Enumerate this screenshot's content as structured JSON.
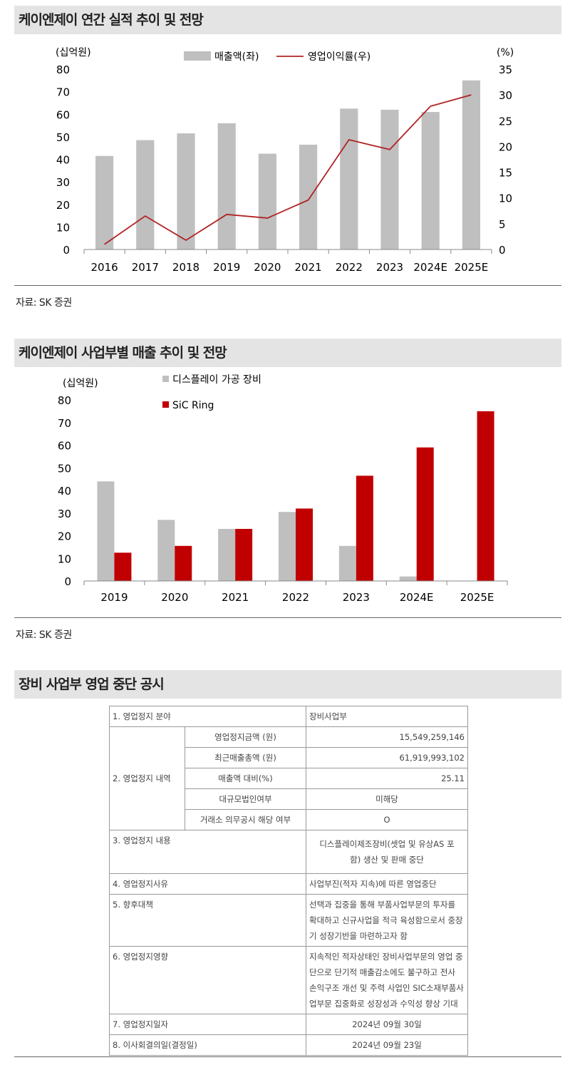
{
  "sections": {
    "s1": "케이엔제이 연간 실적 추이 및 전망",
    "s2": "케이엔제이 사업부별 매출 추이 및 전망",
    "s3": "장비 사업부 영업 중단 공시"
  },
  "source": "자료: SK 증권",
  "chart_data": [
    {
      "type": "bar+line",
      "title": "케이엔제이 연간 실적 추이 및 전망",
      "categories": [
        "2016",
        "2017",
        "2018",
        "2019",
        "2020",
        "2021",
        "2022",
        "2023",
        "2024E",
        "2025E"
      ],
      "ylabel": "(십억원)",
      "y2label": "(%)",
      "ylim": [
        0,
        80
      ],
      "y2lim": [
        0,
        35
      ],
      "yticks": [
        0,
        10,
        20,
        30,
        40,
        50,
        60,
        70,
        80
      ],
      "y2ticks": [
        0,
        5,
        10,
        15,
        20,
        25,
        30,
        35
      ],
      "series": [
        {
          "name": "매출액(좌)",
          "type": "bar",
          "color": "#bfbfbf",
          "values": [
            41.5,
            48.5,
            51.5,
            56,
            42.5,
            46.5,
            62.5,
            62,
            61,
            75
          ]
        },
        {
          "name": "영업이익률(우)",
          "type": "line",
          "axis": "right",
          "color": "#b22222",
          "values": [
            1,
            6.5,
            1.8,
            6.8,
            6.1,
            9.6,
            21.3,
            19.4,
            27.8,
            30
          ]
        }
      ],
      "legend": "top-center"
    },
    {
      "type": "bar",
      "title": "케이엔제이 사업부별 매출 추이 및 전망",
      "categories": [
        "2019",
        "2020",
        "2021",
        "2022",
        "2023",
        "2024E",
        "2025E"
      ],
      "ylabel": "(십억원)",
      "ylim": [
        0,
        80
      ],
      "yticks": [
        0,
        10,
        20,
        30,
        40,
        50,
        60,
        70,
        80
      ],
      "series": [
        {
          "name": "디스플레이 가공 장비",
          "color": "#bfbfbf",
          "values": [
            44,
            27,
            23,
            30.5,
            15.5,
            2,
            0
          ]
        },
        {
          "name": "SiC Ring",
          "color": "#c00000",
          "values": [
            12.5,
            15.5,
            23,
            32,
            46.5,
            59,
            75
          ]
        }
      ],
      "legend": "top-left"
    }
  ],
  "table": {
    "r1": [
      "1. 영업정지 분야",
      "장비사업부"
    ],
    "r2_label": "2. 영업정지 내역",
    "r2": [
      [
        "영업정지금액 (원)",
        "15,549,259,146"
      ],
      [
        "최근매출총액 (원)",
        "61,919,993,102"
      ],
      [
        "매출액 대비(%)",
        "25.11"
      ],
      [
        "대규모법인여부",
        "미해당"
      ],
      [
        "거래소 의무공시 해당 여부",
        "O"
      ]
    ],
    "r3": [
      "3. 영업정지 내용",
      "디스플레이제조장비(셋업 및 유상AS 포함) 생산 및 판매 중단"
    ],
    "r4": [
      "4. 영업정지사유",
      "사업부진(적자 지속)에 따른 영업중단"
    ],
    "r5": [
      "5. 향후대책",
      "선택과 집중을 통해 부품사업부문의 투자를 확대하고 신규사업을 적극 육성함으로서 중장기 성장기반을 마련하고자 함"
    ],
    "r6": [
      "6. 영업정지영향",
      "지속적인 적자상태인 장비사업부문의 영업 중단으로 단기적 매출감소에도 불구하고 전사 손익구조 개선 및 주력 사업인 SIC소재부품사업부문 집중화로 성장성과 수익성 향상 기대"
    ],
    "r7": [
      "7. 영업정지일자",
      "2024년 09월 30일"
    ],
    "r8": [
      "8. 이사회결의일(결정일)",
      "2024년 09월 23일"
    ]
  }
}
